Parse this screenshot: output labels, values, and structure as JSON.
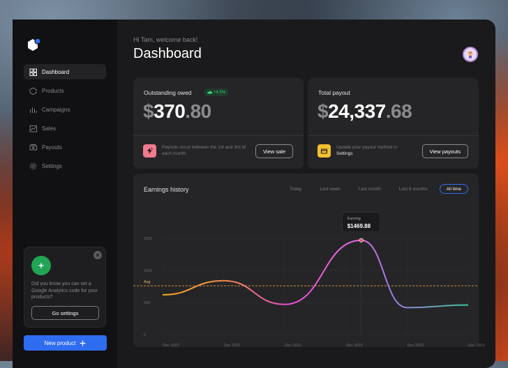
{
  "greeting": "Hi Tam, welcome back!",
  "page_title": "Dashboard",
  "sidebar": {
    "items": [
      {
        "label": "Dashboard",
        "icon": "grid-icon",
        "active": true
      },
      {
        "label": "Products",
        "icon": "box-icon",
        "active": false
      },
      {
        "label": "Campaigns",
        "icon": "bar-chart-icon",
        "active": false
      },
      {
        "label": "Sales",
        "icon": "trend-icon",
        "active": false
      },
      {
        "label": "Payouts",
        "icon": "money-icon",
        "active": false
      },
      {
        "label": "Settings",
        "icon": "gear-icon",
        "active": false
      }
    ],
    "promo": {
      "text": "Did you know you can set a Google Analytics code for your products?",
      "button": "Go settings"
    },
    "new_product": "New product"
  },
  "cards": {
    "outstanding": {
      "label": "Outstanding owed",
      "badge": "+4,5%",
      "currency": "$",
      "whole": "370",
      "cents": ".80",
      "note": "Payouts occur between the 1st and 3rd of each month.",
      "button": "View sale"
    },
    "total": {
      "label": "Total payout",
      "currency": "$",
      "whole": "24,337",
      "cents": ".68",
      "note": "Update your payout method in",
      "note_link": "Settings",
      "button": "View payouts"
    }
  },
  "earnings": {
    "title": "Earnings history",
    "tabs": [
      "Today",
      "Last week",
      "Last month",
      "Last 6 months",
      "All time"
    ],
    "active_tab": "All time"
  },
  "colors": {
    "accent": "#2f6df0",
    "positive": "#3ccc75",
    "avg_line": "#e8a23a"
  },
  "chart_data": {
    "type": "line",
    "yticks": [
      0,
      500,
      1000,
      1500
    ],
    "ylim": [
      0,
      1500
    ],
    "xticks": [
      "Dec 2022",
      "Dec 2022",
      "Dec 2022",
      "Dec 2022",
      "Dec 2022",
      "Dec 2022"
    ],
    "avg_label": "Avg",
    "avg_value": 760,
    "series": [
      {
        "x": [
          0,
          0.2,
          0.4,
          0.65,
          0.8,
          1.0
        ],
        "y": [
          620,
          840,
          470,
          1470,
          420,
          460
        ]
      }
    ],
    "tooltip": {
      "label": "Earning",
      "value": "$1469.88",
      "x": 0.65,
      "y": 1470
    }
  }
}
